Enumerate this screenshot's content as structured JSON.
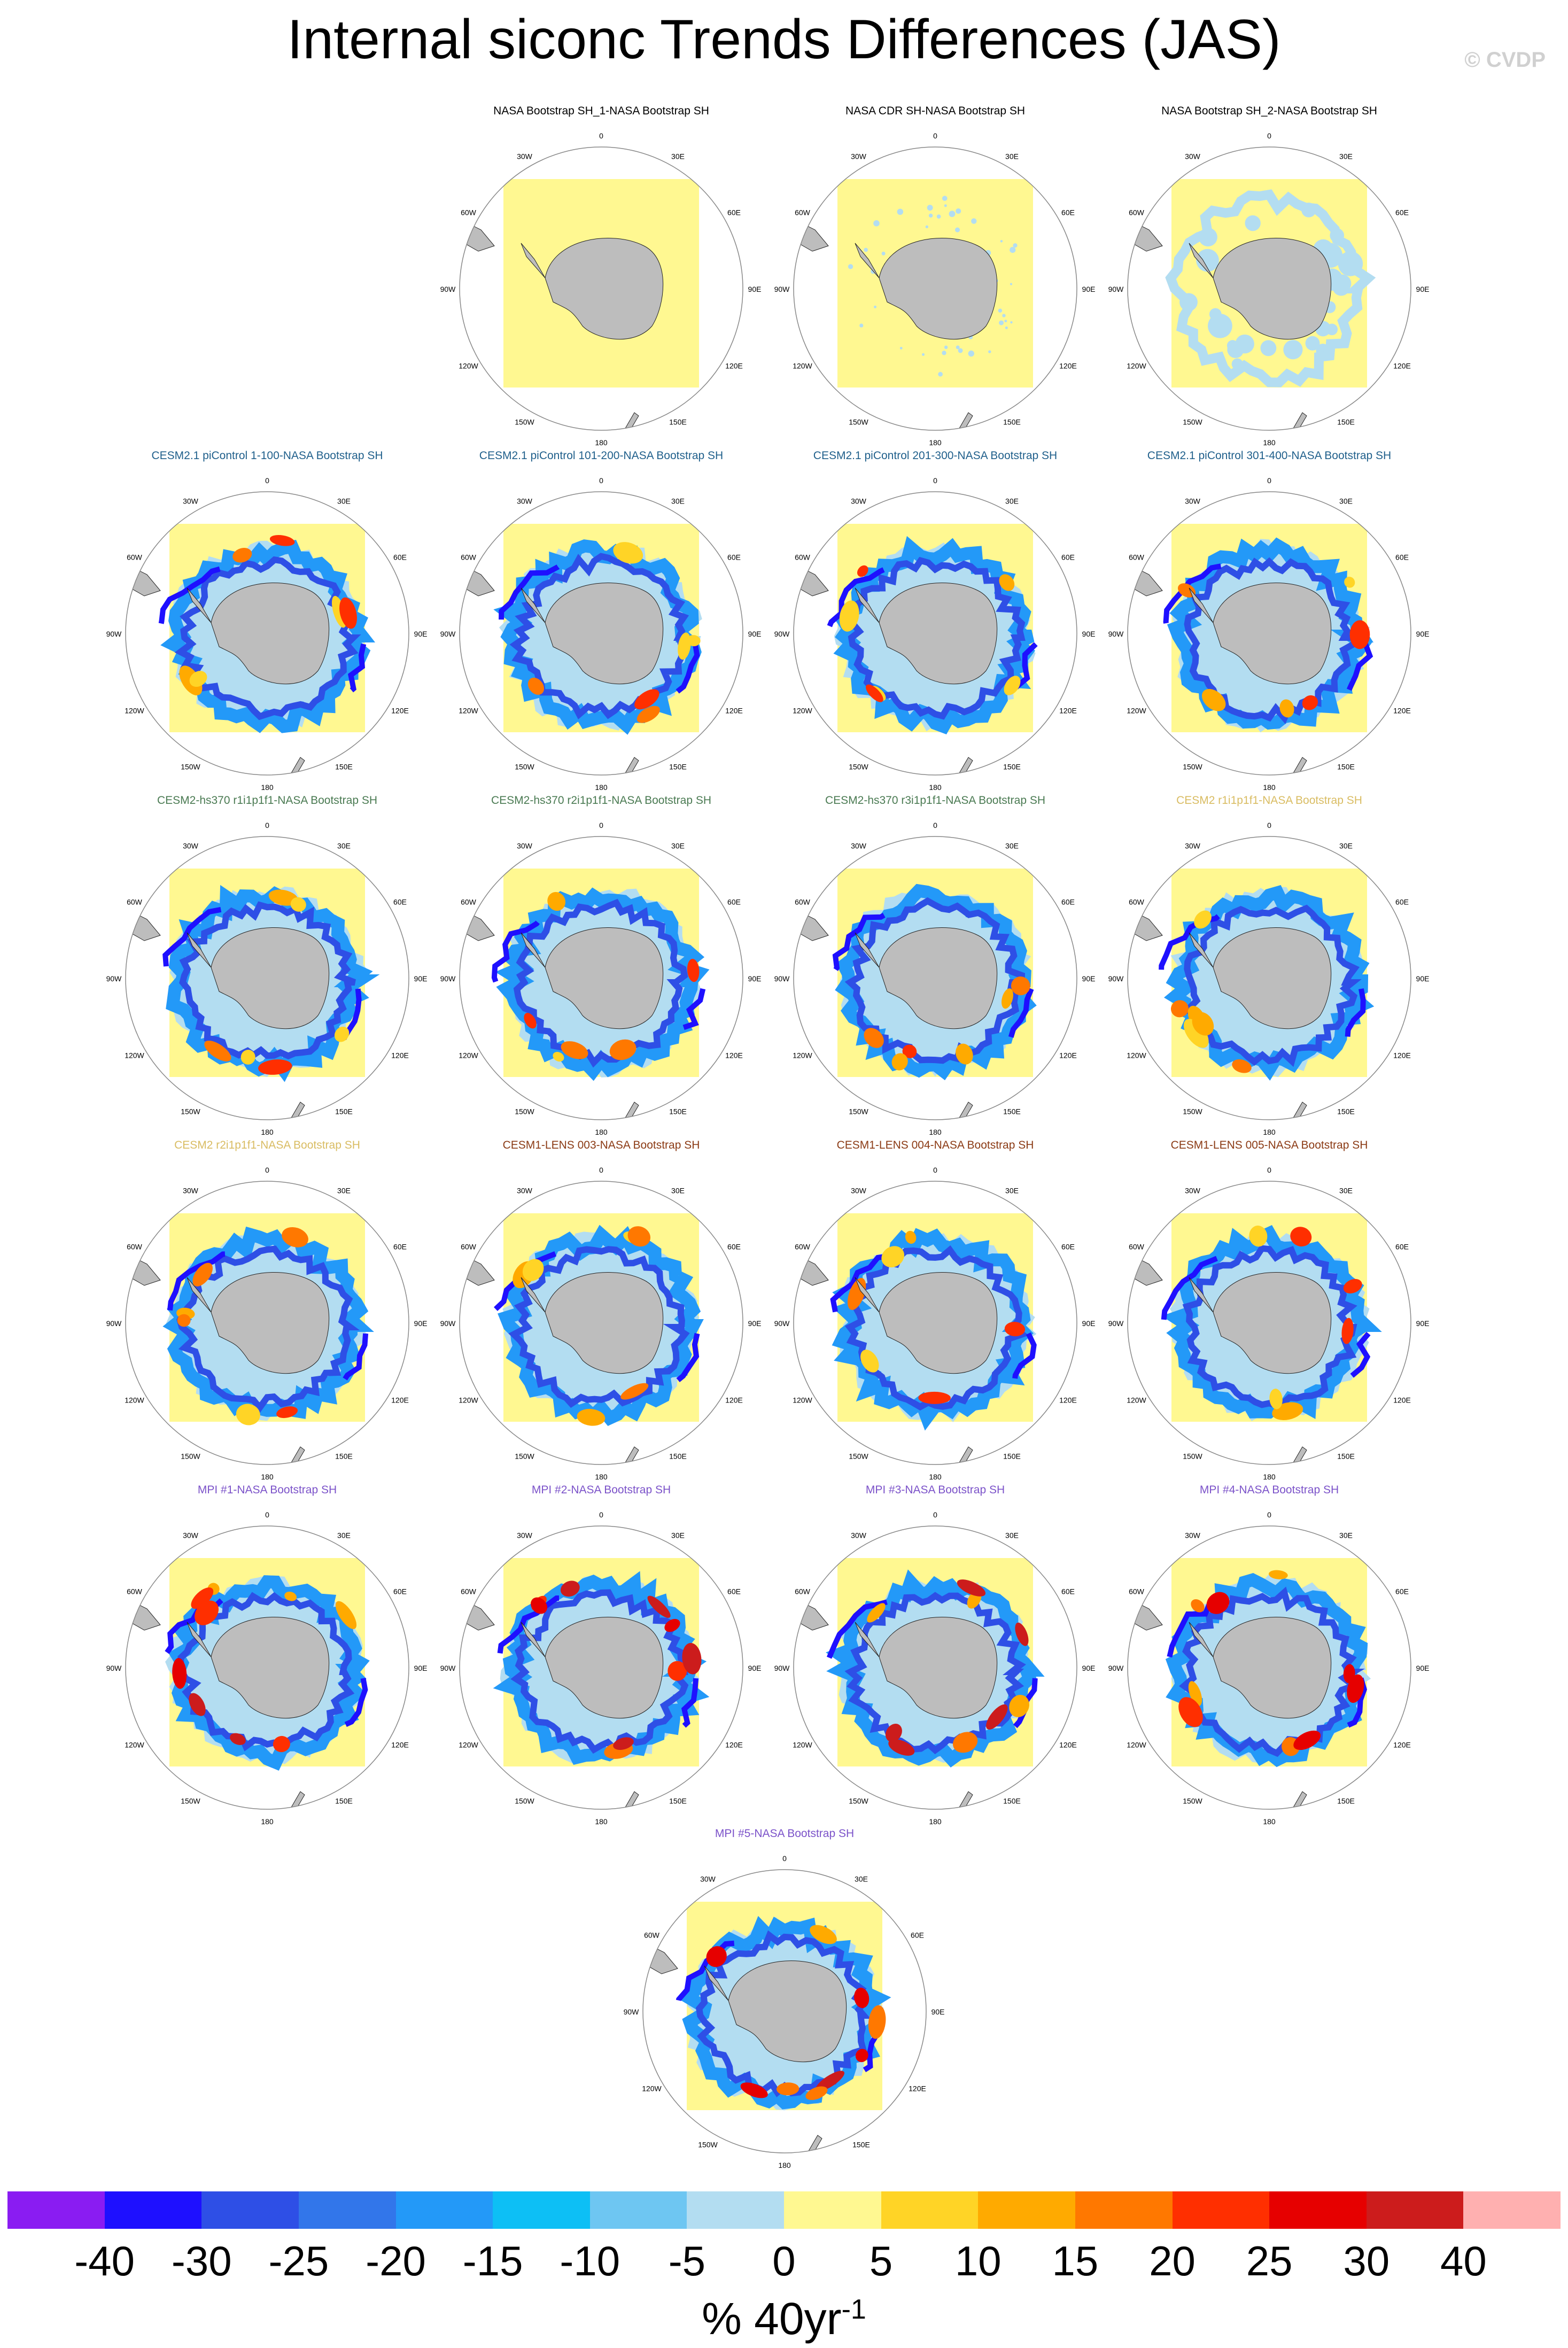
{
  "title": "Internal siconc Trends Differences (JAS)",
  "credit": "© CVDP",
  "units_label": "% 40yr",
  "units_superscript": "-1",
  "colorbar": {
    "labels": [
      "-40",
      "-30",
      "-25",
      "-20",
      "-15",
      "-10",
      "-5",
      "0",
      "5",
      "10",
      "15",
      "20",
      "25",
      "30",
      "40"
    ],
    "colors": [
      "#8A1CF2",
      "#1E10FF",
      "#2E4FE6",
      "#3276EA",
      "#2399F8",
      "#0DBFF5",
      "#6EC6F2",
      "#B3DDF1",
      "#FFF891",
      "#FFD426",
      "#FFAA00",
      "#FF7800",
      "#FF2F00",
      "#E60000",
      "#CC1C1C",
      "#FFB0B0"
    ]
  },
  "map_labels": {
    "lon": [
      "0",
      "30E",
      "60E",
      "90E",
      "120E",
      "150E",
      "180",
      "150W",
      "120W",
      "90W",
      "60W",
      "30W"
    ]
  },
  "panels": [
    {
      "title": "NASA Bootstrap SH_1-NASA Bootstrap SH",
      "color": "#000000",
      "pattern": "flat"
    },
    {
      "title": "NASA CDR SH-NASA Bootstrap SH",
      "color": "#000000",
      "pattern": "flecks"
    },
    {
      "title": "NASA Bootstrap SH_2-NASA Bootstrap SH",
      "color": "#000000",
      "pattern": "light"
    },
    {
      "title": "CESM2.1 piControl 1-100-NASA Bootstrap SH",
      "color": "#1f5f8b",
      "pattern": "ring"
    },
    {
      "title": "CESM2.1 piControl 101-200-NASA Bootstrap SH",
      "color": "#1f5f8b",
      "pattern": "ring"
    },
    {
      "title": "CESM2.1 piControl 201-300-NASA Bootstrap SH",
      "color": "#1f5f8b",
      "pattern": "ring"
    },
    {
      "title": "CESM2.1 piControl 301-400-NASA Bootstrap SH",
      "color": "#1f5f8b",
      "pattern": "ring"
    },
    {
      "title": "CESM2-hs370 r1i1p1f1-NASA Bootstrap SH",
      "color": "#4a7a52",
      "pattern": "ring"
    },
    {
      "title": "CESM2-hs370 r2i1p1f1-NASA Bootstrap SH",
      "color": "#4a7a52",
      "pattern": "ring"
    },
    {
      "title": "CESM2-hs370 r3i1p1f1-NASA Bootstrap SH",
      "color": "#4a7a52",
      "pattern": "ring"
    },
    {
      "title": "CESM2 r1i1p1f1-NASA Bootstrap SH",
      "color": "#d9bc62",
      "pattern": "ring"
    },
    {
      "title": "CESM2 r2i1p1f1-NASA Bootstrap SH",
      "color": "#d9bc62",
      "pattern": "ring"
    },
    {
      "title": "CESM1-LENS 003-NASA Bootstrap SH",
      "color": "#8b3a14",
      "pattern": "ring"
    },
    {
      "title": "CESM1-LENS 004-NASA Bootstrap SH",
      "color": "#8b3a14",
      "pattern": "ring"
    },
    {
      "title": "CESM1-LENS 005-NASA Bootstrap SH",
      "color": "#8b3a14",
      "pattern": "ring"
    },
    {
      "title": "MPI #1-NASA Bootstrap SH",
      "color": "#7b52c9",
      "pattern": "mpi"
    },
    {
      "title": "MPI #2-NASA Bootstrap SH",
      "color": "#7b52c9",
      "pattern": "mpi"
    },
    {
      "title": "MPI #3-NASA Bootstrap SH",
      "color": "#7b52c9",
      "pattern": "mpi"
    },
    {
      "title": "MPI #4-NASA Bootstrap SH",
      "color": "#7b52c9",
      "pattern": "mpi"
    },
    {
      "title": "MPI #5-NASA Bootstrap SH",
      "color": "#7b52c9",
      "pattern": "mpi"
    }
  ]
}
